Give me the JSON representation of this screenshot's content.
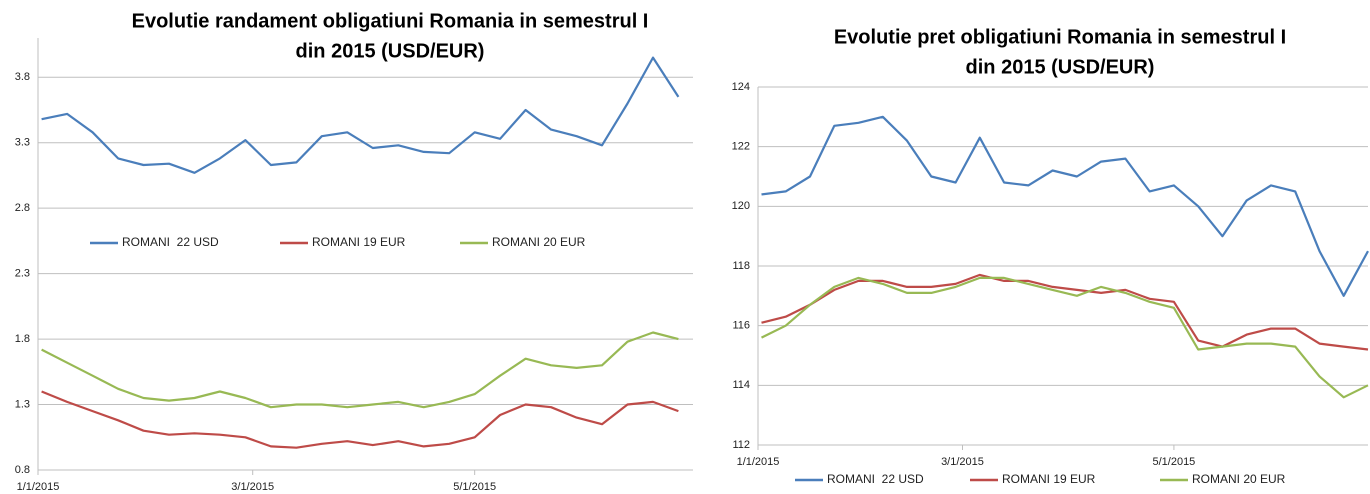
{
  "chart_data": [
    {
      "type": "line",
      "title": [
        "Evolutie randament obligatiuni Romania in semestrul I",
        "din 2015 (USD/EUR)"
      ],
      "x": [
        "2015-01-02",
        "2015-01-09",
        "2015-01-16",
        "2015-01-23",
        "2015-01-30",
        "2015-02-06",
        "2015-02-13",
        "2015-02-20",
        "2015-02-27",
        "2015-03-06",
        "2015-03-13",
        "2015-03-20",
        "2015-03-27",
        "2015-04-03",
        "2015-04-10",
        "2015-04-17",
        "2015-04-24",
        "2015-05-01",
        "2015-05-08",
        "2015-05-15",
        "2015-05-22",
        "2015-05-29",
        "2015-06-05",
        "2015-06-12",
        "2015-06-19",
        "2015-06-26"
      ],
      "series": [
        {
          "name": "ROMANI  22 USD",
          "color": "#4a7ebb",
          "values": [
            3.48,
            3.52,
            3.38,
            3.18,
            3.13,
            3.14,
            3.07,
            3.18,
            3.32,
            3.13,
            3.15,
            3.35,
            3.38,
            3.26,
            3.28,
            3.23,
            3.22,
            3.38,
            3.33,
            3.55,
            3.4,
            3.35,
            3.28,
            3.6,
            3.95,
            3.65
          ]
        },
        {
          "name": "ROMANI 19 EUR",
          "color": "#be4b48",
          "values": [
            1.4,
            1.32,
            1.25,
            1.18,
            1.1,
            1.07,
            1.08,
            1.07,
            1.05,
            0.98,
            0.97,
            1.0,
            1.02,
            0.99,
            1.02,
            0.98,
            1.0,
            1.05,
            1.22,
            1.3,
            1.28,
            1.2,
            1.15,
            1.3,
            1.32,
            1.25
          ]
        },
        {
          "name": "ROMANI 20 EUR",
          "color": "#98b954",
          "values": [
            1.72,
            1.62,
            1.52,
            1.42,
            1.35,
            1.33,
            1.35,
            1.4,
            1.35,
            1.28,
            1.3,
            1.3,
            1.28,
            1.3,
            1.32,
            1.28,
            1.32,
            1.38,
            1.52,
            1.65,
            1.6,
            1.58,
            1.6,
            1.78,
            1.85,
            1.8
          ]
        }
      ],
      "xlim": [
        "2015-01-01",
        "2015-06-30"
      ],
      "xticks": [
        {
          "value": "2015-01-01",
          "label": "1/1/2015"
        },
        {
          "value": "2015-03-01",
          "label": "3/1/2015"
        },
        {
          "value": "2015-05-01",
          "label": "5/1/2015"
        }
      ],
      "ylim": [
        0.8,
        4.1
      ],
      "yticks": [
        0.8,
        1.3,
        1.8,
        2.3,
        2.8,
        3.3,
        3.8
      ],
      "grid": true,
      "legend": "inside-middle"
    },
    {
      "type": "line",
      "title": [
        "Evolutie pret obligatiuni Romania in semestrul I",
        "din 2015 (USD/EUR)"
      ],
      "x": [
        "2015-01-02",
        "2015-01-09",
        "2015-01-16",
        "2015-01-23",
        "2015-01-30",
        "2015-02-06",
        "2015-02-13",
        "2015-02-20",
        "2015-02-27",
        "2015-03-06",
        "2015-03-13",
        "2015-03-20",
        "2015-03-27",
        "2015-04-03",
        "2015-04-10",
        "2015-04-17",
        "2015-04-24",
        "2015-05-01",
        "2015-05-08",
        "2015-05-15",
        "2015-05-22",
        "2015-05-29",
        "2015-06-05",
        "2015-06-12",
        "2015-06-19",
        "2015-06-26"
      ],
      "series": [
        {
          "name": "ROMANI  22 USD",
          "color": "#4a7ebb",
          "values": [
            120.4,
            120.5,
            121.0,
            122.7,
            122.8,
            123.0,
            122.2,
            121.0,
            120.8,
            122.3,
            120.8,
            120.7,
            121.2,
            121.0,
            121.5,
            121.6,
            120.5,
            120.7,
            120.0,
            119.0,
            120.2,
            120.7,
            120.5,
            118.5,
            117.0,
            118.5
          ]
        },
        {
          "name": "ROMANI 19 EUR",
          "color": "#be4b48",
          "values": [
            116.1,
            116.3,
            116.7,
            117.2,
            117.5,
            117.5,
            117.3,
            117.3,
            117.4,
            117.7,
            117.5,
            117.5,
            117.3,
            117.2,
            117.1,
            117.2,
            116.9,
            116.8,
            115.5,
            115.3,
            115.7,
            115.9,
            115.9,
            115.4,
            115.3,
            115.2
          ]
        },
        {
          "name": "ROMANI 20 EUR",
          "color": "#98b954",
          "values": [
            115.6,
            116.0,
            116.7,
            117.3,
            117.6,
            117.4,
            117.1,
            117.1,
            117.3,
            117.6,
            117.6,
            117.4,
            117.2,
            117.0,
            117.3,
            117.1,
            116.8,
            116.6,
            115.2,
            115.3,
            115.4,
            115.4,
            115.3,
            114.3,
            113.6,
            114.0
          ]
        }
      ],
      "xlim": [
        "2015-01-01",
        "2015-06-26"
      ],
      "xticks": [
        {
          "value": "2015-01-01",
          "label": "1/1/2015"
        },
        {
          "value": "2015-03-01",
          "label": "3/1/2015"
        },
        {
          "value": "2015-05-01",
          "label": "5/1/2015"
        }
      ],
      "ylim": [
        112,
        124
      ],
      "yticks": [
        112,
        114,
        116,
        118,
        120,
        122,
        124
      ],
      "grid": true,
      "legend": "bottom"
    }
  ]
}
